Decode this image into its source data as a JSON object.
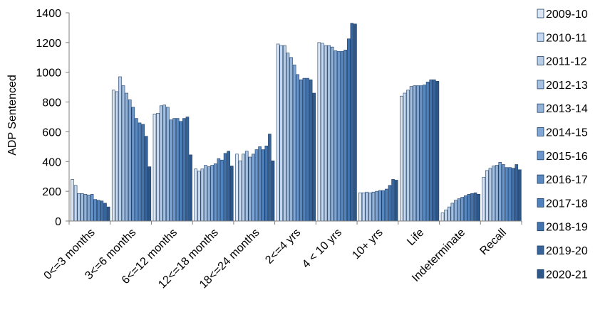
{
  "chart_data": {
    "type": "bar",
    "title": "",
    "xlabel": "",
    "ylabel": "ADP Sentenced",
    "ylim": [
      0,
      1400
    ],
    "yticks": [
      0,
      200,
      400,
      600,
      800,
      1000,
      1200,
      1400
    ],
    "grid": false,
    "legend_position": "right",
    "categories": [
      "0<=3 months",
      "3<=6 months",
      "6<=12 months",
      "12<=18 months",
      "18<=24 months",
      "2<=4 yrs",
      "4 < 10 yrs",
      "10+ yrs",
      "Life",
      "Indeterminate",
      "Recall"
    ],
    "series": [
      {
        "name": "2009-10",
        "color": "#dce6f2",
        "values": [
          280,
          880,
          720,
          350,
          450,
          1190,
          1200,
          190,
          840,
          55,
          295
        ]
      },
      {
        "name": "2010-11",
        "color": "#c6d9f1",
        "values": [
          240,
          870,
          725,
          335,
          405,
          1180,
          1195,
          190,
          860,
          75,
          340
        ]
      },
      {
        "name": "2011-12",
        "color": "#b8cce4",
        "values": [
          185,
          970,
          775,
          350,
          450,
          1180,
          1180,
          195,
          880,
          95,
          355
        ]
      },
      {
        "name": "2012-13",
        "color": "#a5c0e0",
        "values": [
          185,
          910,
          780,
          375,
          470,
          1130,
          1180,
          190,
          905,
          120,
          370
        ]
      },
      {
        "name": "2013-14",
        "color": "#95b3d7",
        "values": [
          180,
          860,
          765,
          365,
          430,
          1100,
          1170,
          195,
          910,
          140,
          375
        ]
      },
      {
        "name": "2014-15",
        "color": "#7fa6d4",
        "values": [
          175,
          815,
          680,
          375,
          450,
          1050,
          1145,
          200,
          910,
          150,
          395
        ]
      },
      {
        "name": "2015-16",
        "color": "#6a96cc",
        "values": [
          180,
          765,
          690,
          385,
          480,
          985,
          1140,
          205,
          910,
          160,
          380
        ]
      },
      {
        "name": "2016-17",
        "color": "#5a89c0",
        "values": [
          145,
          690,
          690,
          420,
          500,
          950,
          1140,
          205,
          915,
          170,
          360
        ]
      },
      {
        "name": "2017-18",
        "color": "#4f81bd",
        "values": [
          140,
          660,
          670,
          410,
          480,
          960,
          1150,
          215,
          935,
          180,
          360
        ]
      },
      {
        "name": "2018-19",
        "color": "#4373ad",
        "values": [
          135,
          650,
          690,
          455,
          505,
          960,
          1225,
          240,
          950,
          185,
          355
        ]
      },
      {
        "name": "2019-20",
        "color": "#38649a",
        "values": [
          120,
          570,
          700,
          470,
          585,
          950,
          1330,
          280,
          950,
          190,
          380
        ]
      },
      {
        "name": "2020-21",
        "color": "#2d5788",
        "values": [
          95,
          365,
          445,
          370,
          405,
          860,
          1325,
          275,
          940,
          180,
          345
        ]
      }
    ]
  }
}
